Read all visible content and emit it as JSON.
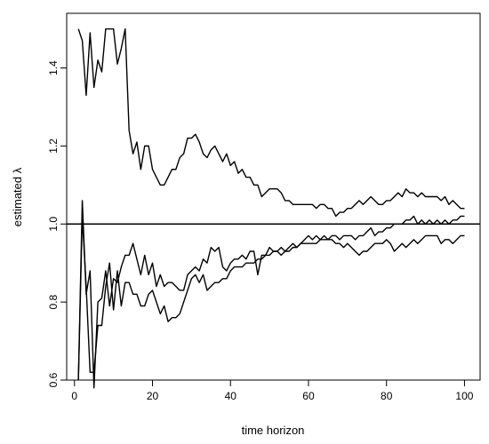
{
  "chart_data": {
    "type": "line",
    "xlabel": "time horizon",
    "ylabel": "estimated λ",
    "xlim": [
      -2,
      104
    ],
    "ylim": [
      0.6,
      1.54
    ],
    "xticks": [
      0,
      20,
      40,
      60,
      80,
      100
    ],
    "yticks": [
      0.6,
      0.8,
      1.0,
      1.2,
      1.4
    ],
    "ytick_labels": [
      "0.6",
      "0.8",
      "1.0",
      "1.2",
      "1.4"
    ],
    "reference_line": {
      "y": 1.0
    },
    "grid": false,
    "legend": "none",
    "series": [
      {
        "x": [
          1,
          2,
          3,
          4,
          5,
          6,
          7,
          8,
          9,
          10,
          11,
          12,
          13,
          14,
          15,
          16,
          17,
          18,
          19,
          20,
          21,
          22,
          23,
          24,
          25,
          26,
          27,
          28,
          29,
          30,
          31,
          32,
          33,
          34,
          35,
          36,
          37,
          38,
          39,
          40,
          41,
          42,
          43,
          44,
          45,
          46,
          47,
          48,
          49,
          50,
          51,
          52,
          53,
          54,
          55,
          56,
          57,
          58,
          59,
          60,
          61,
          62,
          63,
          64,
          65,
          66,
          67,
          68,
          69,
          70,
          71,
          72,
          73,
          74,
          75,
          76,
          77,
          78,
          79,
          80,
          81,
          82,
          83,
          84,
          85,
          86,
          87,
          88,
          89,
          90,
          91,
          92,
          93,
          94,
          95,
          96,
          97,
          98,
          99,
          100
        ],
        "y": [
          1.5,
          1.47,
          1.33,
          1.49,
          1.35,
          1.42,
          1.39,
          1.5,
          1.5,
          1.5,
          1.41,
          1.45,
          1.5,
          1.24,
          1.18,
          1.21,
          1.14,
          1.2,
          1.2,
          1.14,
          1.12,
          1.1,
          1.1,
          1.12,
          1.14,
          1.14,
          1.17,
          1.18,
          1.22,
          1.22,
          1.23,
          1.21,
          1.18,
          1.17,
          1.19,
          1.2,
          1.18,
          1.16,
          1.18,
          1.15,
          1.16,
          1.13,
          1.14,
          1.12,
          1.12,
          1.1,
          1.1,
          1.07,
          1.08,
          1.09,
          1.09,
          1.09,
          1.08,
          1.06,
          1.06,
          1.05,
          1.05,
          1.05,
          1.05,
          1.05,
          1.05,
          1.04,
          1.05,
          1.05,
          1.04,
          1.04,
          1.02,
          1.03,
          1.03,
          1.04,
          1.04,
          1.05,
          1.06,
          1.05,
          1.06,
          1.07,
          1.06,
          1.05,
          1.05,
          1.06,
          1.06,
          1.07,
          1.08,
          1.07,
          1.09,
          1.08,
          1.08,
          1.07,
          1.08,
          1.07,
          1.07,
          1.07,
          1.07,
          1.06,
          1.07,
          1.05,
          1.06,
          1.05,
          1.04,
          1.04
        ]
      },
      {
        "x": [
          1,
          2,
          3,
          4,
          5,
          6,
          7,
          8,
          9,
          10,
          11,
          12,
          13,
          14,
          15,
          16,
          17,
          18,
          19,
          20,
          21,
          22,
          23,
          24,
          25,
          26,
          27,
          28,
          29,
          30,
          31,
          32,
          33,
          34,
          35,
          36,
          37,
          38,
          39,
          40,
          41,
          42,
          43,
          44,
          45,
          46,
          47,
          48,
          49,
          50,
          51,
          52,
          53,
          54,
          55,
          56,
          57,
          58,
          59,
          60,
          61,
          62,
          63,
          64,
          65,
          66,
          67,
          68,
          69,
          70,
          71,
          72,
          73,
          74,
          75,
          76,
          77,
          78,
          79,
          80,
          81,
          82,
          83,
          84,
          85,
          86,
          87,
          88,
          89,
          90,
          91,
          92,
          93,
          94,
          95,
          96,
          97,
          98,
          99,
          100
        ],
        "y": [
          0.6,
          1.06,
          0.82,
          0.88,
          0.58,
          0.8,
          0.81,
          0.88,
          0.79,
          0.86,
          0.85,
          0.89,
          0.92,
          0.92,
          0.95,
          0.91,
          0.87,
          0.92,
          0.87,
          0.9,
          0.84,
          0.87,
          0.84,
          0.85,
          0.85,
          0.84,
          0.83,
          0.83,
          0.87,
          0.88,
          0.89,
          0.88,
          0.91,
          0.9,
          0.94,
          0.93,
          0.94,
          0.89,
          0.88,
          0.9,
          0.91,
          0.91,
          0.92,
          0.91,
          0.93,
          0.93,
          0.87,
          0.92,
          0.92,
          0.94,
          0.93,
          0.93,
          0.92,
          0.93,
          0.94,
          0.95,
          0.94,
          0.95,
          0.96,
          0.97,
          0.96,
          0.97,
          0.96,
          0.97,
          0.96,
          0.97,
          0.97,
          0.96,
          0.97,
          0.97,
          0.97,
          0.96,
          0.97,
          0.97,
          0.98,
          0.99,
          0.97,
          0.98,
          0.98,
          0.99,
          0.99,
          1.0,
          1.0,
          1.0,
          1.01,
          1.01,
          1.02,
          1.0,
          1.01,
          1.0,
          1.01,
          1.0,
          1.01,
          1.0,
          1.01,
          1.0,
          1.01,
          1.01,
          1.02,
          1.02
        ]
      },
      {
        "x": [
          1,
          2,
          3,
          4,
          5,
          6,
          7,
          8,
          9,
          10,
          11,
          12,
          13,
          14,
          15,
          16,
          17,
          18,
          19,
          20,
          21,
          22,
          23,
          24,
          25,
          26,
          27,
          28,
          29,
          30,
          31,
          32,
          33,
          34,
          35,
          36,
          37,
          38,
          39,
          40,
          41,
          42,
          43,
          44,
          45,
          46,
          47,
          48,
          49,
          50,
          51,
          52,
          53,
          54,
          55,
          56,
          57,
          58,
          59,
          60,
          61,
          62,
          63,
          64,
          65,
          66,
          67,
          68,
          69,
          70,
          71,
          72,
          73,
          74,
          75,
          76,
          77,
          78,
          79,
          80,
          81,
          82,
          83,
          84,
          85,
          86,
          87,
          88,
          89,
          90,
          91,
          92,
          93,
          94,
          95,
          96,
          97,
          98,
          99,
          100
        ],
        "y": [
          0.6,
          1.02,
          0.84,
          0.62,
          0.62,
          0.74,
          0.74,
          0.84,
          0.9,
          0.78,
          0.88,
          0.79,
          0.85,
          0.85,
          0.82,
          0.82,
          0.79,
          0.79,
          0.82,
          0.83,
          0.8,
          0.77,
          0.79,
          0.75,
          0.76,
          0.76,
          0.77,
          0.8,
          0.83,
          0.86,
          0.87,
          0.85,
          0.87,
          0.83,
          0.84,
          0.85,
          0.85,
          0.86,
          0.86,
          0.88,
          0.89,
          0.89,
          0.89,
          0.9,
          0.9,
          0.9,
          0.91,
          0.91,
          0.92,
          0.92,
          0.93,
          0.93,
          0.94,
          0.93,
          0.93,
          0.94,
          0.94,
          0.95,
          0.95,
          0.95,
          0.95,
          0.95,
          0.96,
          0.96,
          0.96,
          0.96,
          0.95,
          0.95,
          0.94,
          0.95,
          0.94,
          0.93,
          0.92,
          0.93,
          0.93,
          0.94,
          0.95,
          0.95,
          0.95,
          0.96,
          0.95,
          0.93,
          0.94,
          0.95,
          0.94,
          0.95,
          0.96,
          0.95,
          0.96,
          0.97,
          0.97,
          0.97,
          0.97,
          0.95,
          0.96,
          0.96,
          0.95,
          0.96,
          0.97,
          0.97
        ]
      }
    ]
  }
}
